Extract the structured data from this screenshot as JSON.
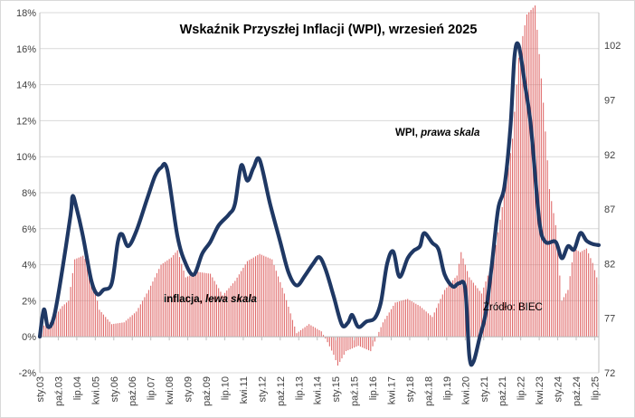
{
  "chart_data": {
    "type": "line",
    "title": "Wskaźnik Przyszłej Inflacji (WPI), wrzesień 2025",
    "source": "Źródło: BIEC",
    "annotations": {
      "wpi": {
        "name": "WPI",
        "suffix": "prawa skala"
      },
      "inflation": {
        "name": "inflacja",
        "suffix": "lewa skala"
      }
    },
    "left_axis": {
      "ylim": [
        -2,
        18
      ],
      "ticks": [
        -2,
        0,
        2,
        4,
        6,
        8,
        10,
        12,
        14,
        16,
        18
      ],
      "tick_labels": [
        "-2%",
        "0%",
        "2%",
        "4%",
        "6%",
        "8%",
        "10%",
        "12%",
        "14%",
        "16%",
        "18%"
      ]
    },
    "right_axis": {
      "ylim": [
        72,
        105
      ],
      "ticks": [
        72,
        77,
        82,
        87,
        92,
        97,
        102
      ],
      "tick_labels": [
        "72",
        "77",
        "82",
        "87",
        "92",
        "97",
        "102"
      ]
    },
    "x_axis": {
      "start": "2003-01",
      "end": "2025-09",
      "tick_labels": [
        "sty.03",
        "paź.03",
        "lip.04",
        "kwi.05",
        "sty.06",
        "paź.06",
        "lip.07",
        "kwi.08",
        "sty.09",
        "paź.09",
        "lip.10",
        "kwi.11",
        "sty.12",
        "paź.12",
        "lip.13",
        "kwi.14",
        "sty.15",
        "paź.15",
        "lip.16",
        "kwi.17",
        "sty.18",
        "paź.18",
        "lip.19",
        "kwi.20",
        "sty.21",
        "paź.21",
        "lip.22",
        "kwi.23",
        "sty.24",
        "paź.24",
        "lip.25"
      ]
    },
    "gridlines": true,
    "series": [
      {
        "name": "inflacja",
        "kind": "bar",
        "axis": "left",
        "color": "#e06c6c",
        "anchors": [
          [
            "2003-01",
            0.5
          ],
          [
            "2003-06",
            0.8
          ],
          [
            "2003-12",
            1.7
          ],
          [
            "2004-03",
            2.0
          ],
          [
            "2004-06",
            4.3
          ],
          [
            "2004-10",
            4.5
          ],
          [
            "2005-01",
            4.0
          ],
          [
            "2005-06",
            1.5
          ],
          [
            "2005-12",
            0.7
          ],
          [
            "2006-06",
            0.8
          ],
          [
            "2006-12",
            1.4
          ],
          [
            "2007-06",
            2.6
          ],
          [
            "2007-12",
            4.0
          ],
          [
            "2008-05",
            4.4
          ],
          [
            "2008-08",
            4.8
          ],
          [
            "2008-12",
            3.3
          ],
          [
            "2009-06",
            3.6
          ],
          [
            "2009-12",
            3.5
          ],
          [
            "2010-06",
            2.3
          ],
          [
            "2010-12",
            3.1
          ],
          [
            "2011-06",
            4.2
          ],
          [
            "2011-12",
            4.6
          ],
          [
            "2012-06",
            4.3
          ],
          [
            "2012-12",
            2.4
          ],
          [
            "2013-06",
            0.2
          ],
          [
            "2013-12",
            0.7
          ],
          [
            "2014-06",
            0.3
          ],
          [
            "2014-09",
            -0.3
          ],
          [
            "2014-12",
            -1.0
          ],
          [
            "2015-02",
            -1.6
          ],
          [
            "2015-06",
            -0.8
          ],
          [
            "2015-12",
            -0.5
          ],
          [
            "2016-06",
            -0.8
          ],
          [
            "2016-12",
            0.8
          ],
          [
            "2017-06",
            1.9
          ],
          [
            "2017-12",
            2.1
          ],
          [
            "2018-06",
            1.7
          ],
          [
            "2018-12",
            1.1
          ],
          [
            "2019-06",
            2.6
          ],
          [
            "2019-12",
            3.4
          ],
          [
            "2020-02",
            4.7
          ],
          [
            "2020-06",
            3.3
          ],
          [
            "2020-12",
            2.4
          ],
          [
            "2021-06",
            4.4
          ],
          [
            "2021-12",
            8.6
          ],
          [
            "2022-03",
            11.0
          ],
          [
            "2022-06",
            15.5
          ],
          [
            "2022-10",
            17.9
          ],
          [
            "2023-02",
            18.4
          ],
          [
            "2023-06",
            13.0
          ],
          [
            "2023-09",
            8.2
          ],
          [
            "2023-12",
            6.2
          ],
          [
            "2024-03",
            2.0
          ],
          [
            "2024-06",
            2.6
          ],
          [
            "2024-09",
            4.9
          ],
          [
            "2024-12",
            4.7
          ],
          [
            "2025-03",
            4.9
          ],
          [
            "2025-06",
            4.1
          ],
          [
            "2025-09",
            2.9
          ]
        ]
      },
      {
        "name": "WPI",
        "kind": "line",
        "axis": "right",
        "color": "#1f3864",
        "anchors": [
          [
            "2003-01",
            75.3
          ],
          [
            "2003-03",
            77.8
          ],
          [
            "2003-05",
            76.2
          ],
          [
            "2003-08",
            77.2
          ],
          [
            "2003-12",
            81.5
          ],
          [
            "2004-04",
            86.5
          ],
          [
            "2004-05",
            88.2
          ],
          [
            "2004-07",
            87.0
          ],
          [
            "2004-10",
            84.5
          ],
          [
            "2005-02",
            80.5
          ],
          [
            "2005-05",
            79.2
          ],
          [
            "2005-08",
            79.6
          ],
          [
            "2005-12",
            80.2
          ],
          [
            "2006-03",
            84.0
          ],
          [
            "2006-05",
            84.7
          ],
          [
            "2006-08",
            83.6
          ],
          [
            "2006-12",
            85.0
          ],
          [
            "2007-05",
            87.8
          ],
          [
            "2007-09",
            90.0
          ],
          [
            "2007-12",
            90.8
          ],
          [
            "2008-03",
            90.6
          ],
          [
            "2008-08",
            84.5
          ],
          [
            "2008-12",
            82.0
          ],
          [
            "2009-04",
            81.0
          ],
          [
            "2009-08",
            82.9
          ],
          [
            "2009-12",
            84.0
          ],
          [
            "2010-04",
            85.5
          ],
          [
            "2010-09",
            86.5
          ],
          [
            "2010-12",
            87.5
          ],
          [
            "2011-03",
            91.0
          ],
          [
            "2011-06",
            89.6
          ],
          [
            "2011-09",
            90.8
          ],
          [
            "2011-12",
            91.5
          ],
          [
            "2012-05",
            87.5
          ],
          [
            "2012-10",
            84.0
          ],
          [
            "2013-02",
            81.2
          ],
          [
            "2013-06",
            80.0
          ],
          [
            "2013-10",
            80.9
          ],
          [
            "2014-02",
            82.0
          ],
          [
            "2014-05",
            82.6
          ],
          [
            "2014-08",
            81.5
          ],
          [
            "2014-12",
            79.0
          ],
          [
            "2015-04",
            76.4
          ],
          [
            "2015-07",
            76.6
          ],
          [
            "2015-09",
            77.3
          ],
          [
            "2015-12",
            76.2
          ],
          [
            "2016-04",
            76.7
          ],
          [
            "2016-08",
            77.0
          ],
          [
            "2016-11",
            78.5
          ],
          [
            "2017-02",
            82.0
          ],
          [
            "2017-05",
            83.1
          ],
          [
            "2017-08",
            80.8
          ],
          [
            "2017-12",
            82.5
          ],
          [
            "2018-03",
            83.2
          ],
          [
            "2018-06",
            83.6
          ],
          [
            "2018-08",
            84.8
          ],
          [
            "2018-12",
            83.9
          ],
          [
            "2019-03",
            83.3
          ],
          [
            "2019-06",
            81.0
          ],
          [
            "2019-10",
            79.9
          ],
          [
            "2020-01",
            80.2
          ],
          [
            "2020-04",
            79.7
          ],
          [
            "2020-06",
            73.5
          ],
          [
            "2020-08",
            73.0
          ],
          [
            "2020-11",
            75.2
          ],
          [
            "2021-02",
            77.5
          ],
          [
            "2021-05",
            82.0
          ],
          [
            "2021-08",
            87.0
          ],
          [
            "2021-11",
            89.0
          ],
          [
            "2022-02",
            94.5
          ],
          [
            "2022-04",
            101.0
          ],
          [
            "2022-06",
            102.0
          ],
          [
            "2022-09",
            98.5
          ],
          [
            "2022-12",
            94.5
          ],
          [
            "2023-04",
            86.0
          ],
          [
            "2023-07",
            84.0
          ],
          [
            "2023-12",
            84.0
          ],
          [
            "2024-03",
            82.5
          ],
          [
            "2024-06",
            83.6
          ],
          [
            "2024-09",
            83.3
          ],
          [
            "2024-12",
            84.8
          ],
          [
            "2025-03",
            84.1
          ],
          [
            "2025-06",
            83.8
          ],
          [
            "2025-09",
            83.7
          ]
        ]
      }
    ]
  }
}
